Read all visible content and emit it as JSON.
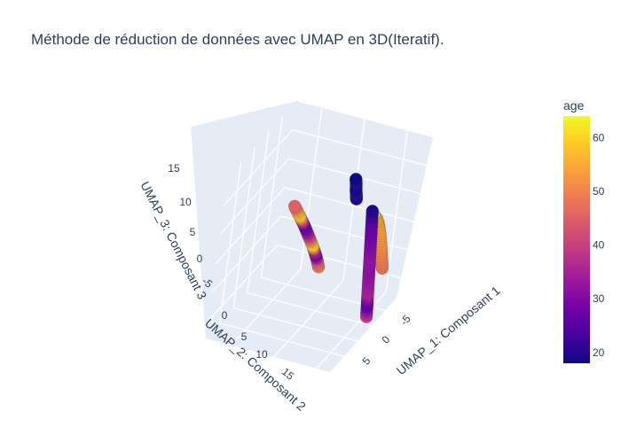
{
  "chart_data": {
    "type": "scatter",
    "title": "Méthode de réduction de données avec UMAP en 3D(Iteratif).",
    "axes": {
      "x": {
        "title": "UMAP_1: Composant 1",
        "ticks": [
          "-5",
          "0",
          "5"
        ]
      },
      "y": {
        "title": "UMAP_2: Composant 2",
        "ticks": [
          "0",
          "5",
          "10",
          "15"
        ]
      },
      "z": {
        "title": "UMAP_3: Composant 3",
        "ticks": [
          "-5",
          "0",
          "5",
          "10",
          "15"
        ]
      }
    },
    "colorbar": {
      "title": "age",
      "ticks": [
        20,
        30,
        40,
        50,
        60
      ],
      "range": [
        18,
        64
      ]
    },
    "colorscale": [
      "#0d0887",
      "#46039f",
      "#7201a8",
      "#9c179e",
      "#bd3786",
      "#d8576b",
      "#ed7953",
      "#fb9f3a",
      "#fdca26",
      "#f0f921"
    ],
    "series": [
      {
        "points": [
          {
            "x": 3.4,
            "y": 8.0,
            "z": 17.8,
            "age": 18
          },
          {
            "x": 3.5,
            "y": 8.0,
            "z": 17.0,
            "age": 19
          },
          {
            "x": 3.6,
            "y": 8.1,
            "z": 16.0,
            "age": 19
          },
          {
            "x": 3.7,
            "y": 8.1,
            "z": 15.3,
            "age": 18
          },
          {
            "x": 3.8,
            "y": 8.2,
            "z": 14.6,
            "age": 20
          }
        ]
      },
      {
        "points": [
          {
            "x": 4.4,
            "y": 3.0,
            "z": 10.0,
            "age": 20
          },
          {
            "x": 4.5,
            "y": 3.0,
            "z": 8.0,
            "age": 26
          },
          {
            "x": 4.6,
            "y": 3.0,
            "z": 6.0,
            "age": 28
          },
          {
            "x": 4.7,
            "y": 3.0,
            "z": 4.0,
            "age": 30
          },
          {
            "x": 4.8,
            "y": 3.0,
            "z": 2.0,
            "age": 32
          },
          {
            "x": 4.9,
            "y": 3.0,
            "z": 0.0,
            "age": 31
          },
          {
            "x": 5.0,
            "y": 3.0,
            "z": -2.0,
            "age": 33
          },
          {
            "x": 5.1,
            "y": 3.0,
            "z": -4.0,
            "age": 35
          },
          {
            "x": 5.2,
            "y": 3.0,
            "z": -6.0,
            "age": 25
          },
          {
            "x": 5.3,
            "y": 3.0,
            "z": -8.0,
            "age": 40
          }
        ]
      },
      {
        "points": [
          {
            "x": 4.6,
            "y": 3.0,
            "z": 9.4,
            "age": 60
          },
          {
            "x": 4.7,
            "y": 2.6,
            "z": 9.0,
            "age": 58
          },
          {
            "x": 4.8,
            "y": 2.2,
            "z": 8.4,
            "age": 56
          },
          {
            "x": 4.9,
            "y": 1.8,
            "z": 7.6,
            "age": 55
          },
          {
            "x": 5.0,
            "y": 1.4,
            "z": 6.4,
            "age": 54
          },
          {
            "x": 5.1,
            "y": 1.0,
            "z": 5.0,
            "age": 53
          },
          {
            "x": 5.2,
            "y": 0.6,
            "z": 3.4,
            "age": 52
          },
          {
            "x": 5.3,
            "y": 0.3,
            "z": 1.8,
            "age": 50
          },
          {
            "x": 5.4,
            "y": 0.0,
            "z": 0.2,
            "age": 49
          },
          {
            "x": 5.5,
            "y": -0.2,
            "z": -1.2,
            "age": 48
          }
        ]
      },
      {
        "points": [
          {
            "x": -4.2,
            "y": 4.0,
            "z": 8.0,
            "age": 45
          },
          {
            "x": -4.0,
            "y": 3.5,
            "z": 7.0,
            "age": 55
          },
          {
            "x": -3.8,
            "y": 3.0,
            "z": 6.0,
            "age": 60
          },
          {
            "x": -3.6,
            "y": 2.5,
            "z": 5.0,
            "age": 40
          },
          {
            "x": -3.4,
            "y": 2.0,
            "z": 4.0,
            "age": 25
          },
          {
            "x": -3.2,
            "y": 1.6,
            "z": 3.0,
            "age": 30
          },
          {
            "x": -3.0,
            "y": 1.2,
            "z": 2.0,
            "age": 38
          },
          {
            "x": -2.8,
            "y": 0.8,
            "z": 1.0,
            "age": 50
          },
          {
            "x": -2.6,
            "y": 0.4,
            "z": 0.0,
            "age": 62
          },
          {
            "x": -2.4,
            "y": 0.1,
            "z": -1.0,
            "age": 35
          },
          {
            "x": -2.2,
            "y": -0.2,
            "z": -2.0,
            "age": 28
          },
          {
            "x": -2.0,
            "y": -0.4,
            "z": -3.0,
            "age": 45
          },
          {
            "x": -1.8,
            "y": -0.5,
            "z": -4.0,
            "age": 50
          }
        ]
      }
    ]
  }
}
